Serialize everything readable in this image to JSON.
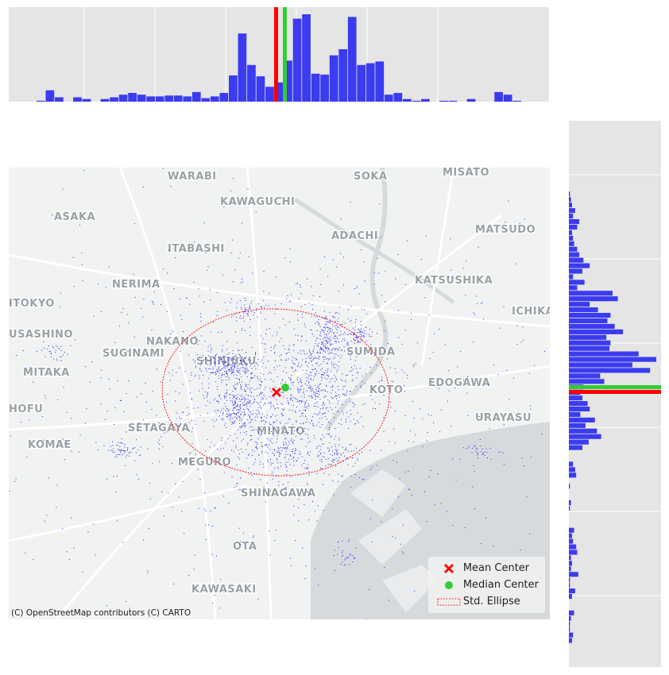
{
  "map": {
    "place_labels": [
      "WARABI",
      "SOKA",
      "MISATO",
      "KAWAGUCHI",
      "ASAKA",
      "ADACHI",
      "MATSUDO",
      "ITABASHI",
      "NERIMA",
      "KATSUSHIKA",
      "ITOKYO",
      "ICHIKA",
      "USASHINO",
      "NAKANO",
      "SUMIDA",
      "SUGINAMI",
      "SHINJUKU",
      "MITAKA",
      "KOTO",
      "EDOGAWA",
      "HOFU",
      "URAYASU",
      "SETAGAYA",
      "MINATO",
      "KOMAE",
      "MEGURO",
      "SHINAGAWA",
      "OTA",
      "KAWASAKI"
    ],
    "attribution": "(C) OpenStreetMap contributors (C) CARTO",
    "point_color": "#2222ee",
    "mean_color": "#ff0000",
    "median_color": "#33cc33",
    "ellipse_color": "#ff0000",
    "hist_color": "#3b3bf0"
  },
  "legend": {
    "mean_label": "Mean Center",
    "median_label": "Median Center",
    "ellipse_label": "Std. Ellipse"
  },
  "histograms": {
    "top_counts": [
      0,
      0,
      0,
      1,
      13,
      5,
      0,
      5,
      3,
      0,
      3,
      5,
      8,
      10,
      8,
      6,
      6,
      7,
      7,
      6,
      11,
      4,
      6,
      10,
      30,
      78,
      42,
      29,
      17,
      22,
      47,
      95,
      100,
      32,
      31,
      53,
      60,
      97,
      42,
      44,
      46,
      8,
      10,
      3,
      1,
      3,
      0,
      1,
      1,
      0,
      3,
      0,
      0,
      11,
      8,
      1,
      0,
      0,
      0
    ],
    "side_counts": [
      0,
      0,
      1,
      2,
      3,
      6,
      4,
      10,
      8,
      3,
      4,
      5,
      8,
      10,
      14,
      20,
      13,
      4,
      15,
      8,
      42,
      47,
      20,
      28,
      40,
      37,
      44,
      52,
      36,
      40,
      39,
      67,
      84,
      61,
      78,
      30,
      34,
      14,
      11,
      13,
      18,
      20,
      11,
      25,
      16,
      27,
      31,
      19,
      13,
      0,
      0,
      4,
      6,
      7,
      0,
      1,
      0,
      0,
      2,
      1,
      0,
      0,
      0,
      5,
      3,
      4,
      7,
      8,
      2,
      3,
      2,
      9,
      1,
      1,
      6,
      3,
      0,
      0,
      5,
      2,
      1,
      1,
      4,
      3
    ]
  }
}
